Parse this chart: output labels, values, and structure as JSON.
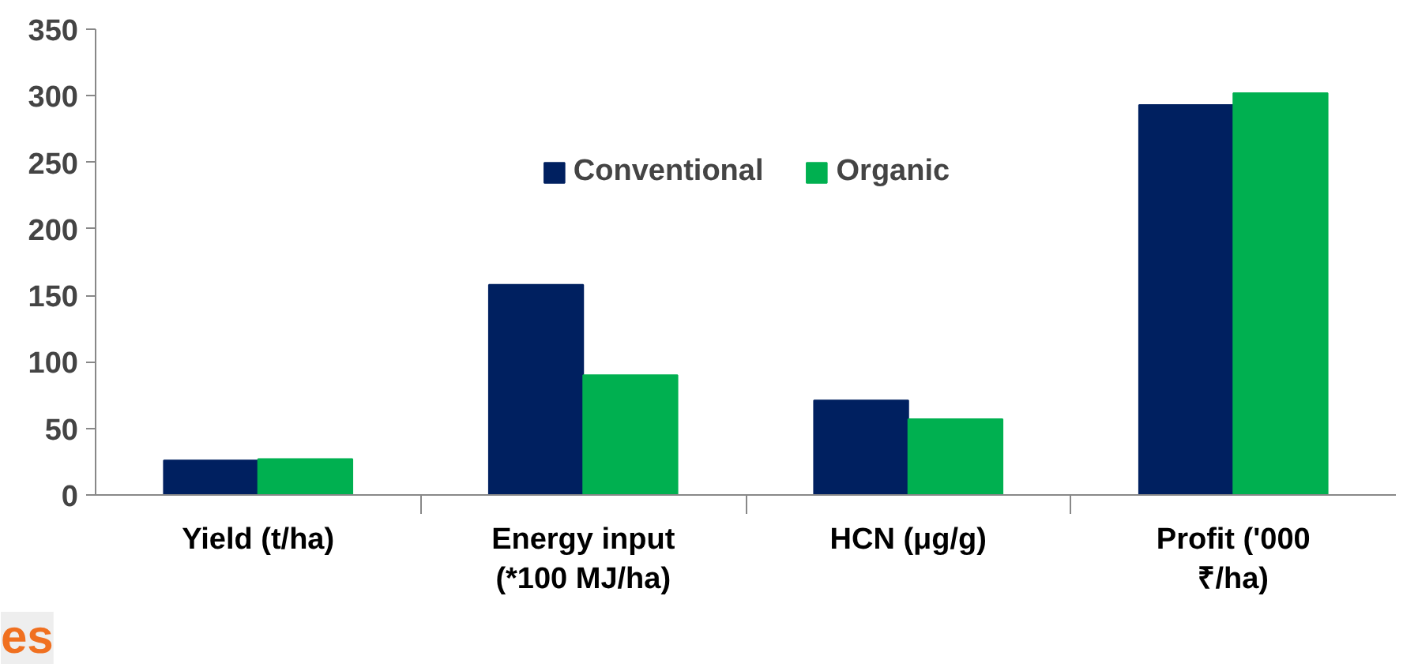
{
  "chart_data": {
    "type": "bar",
    "categories": [
      "Yield (t/ha)",
      "Energy input (*100 MJ/ha)",
      "HCN (μg/g)",
      "Profit ('000 ₹/ha)"
    ],
    "series": [
      {
        "name": "Conventional",
        "color": "#002060",
        "values": [
          26,
          158,
          71,
          293
        ]
      },
      {
        "name": "Organic",
        "color": "#00b050",
        "values": [
          27,
          90,
          57,
          302
        ]
      }
    ],
    "ylim": [
      0,
      350
    ],
    "yticks": [
      0,
      50,
      100,
      150,
      200,
      250,
      300,
      350
    ],
    "legend": "top",
    "annotations": [
      "es"
    ]
  }
}
